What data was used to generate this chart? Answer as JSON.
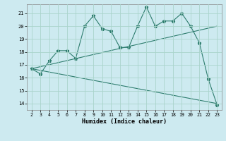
{
  "xlabel": "Humidex (Indice chaleur)",
  "x": [
    2,
    3,
    4,
    5,
    6,
    7,
    8,
    9,
    10,
    11,
    12,
    13,
    14,
    15,
    16,
    17,
    18,
    19,
    20,
    21,
    22,
    23
  ],
  "line1": [
    16.7,
    16.3,
    17.3,
    18.1,
    18.1,
    17.5,
    20.0,
    20.8,
    19.8,
    19.6,
    18.35,
    18.35,
    20.0,
    21.5,
    20.0,
    20.4,
    20.4,
    21.0,
    20.0,
    18.7,
    15.9,
    13.9
  ],
  "line2_x": [
    2,
    23
  ],
  "line2_y": [
    16.7,
    20.0
  ],
  "line3_x": [
    2,
    23
  ],
  "line3_y": [
    16.7,
    14.0
  ],
  "line_color": "#2e7d6e",
  "bg_color": "#cdeaf0",
  "grid_color": "#aad4cc",
  "ylim": [
    13.5,
    21.7
  ],
  "xlim": [
    1.5,
    23.5
  ],
  "yticks": [
    14,
    15,
    16,
    17,
    18,
    19,
    20,
    21
  ],
  "xticks": [
    2,
    3,
    4,
    5,
    6,
    7,
    8,
    9,
    10,
    11,
    12,
    13,
    14,
    15,
    16,
    17,
    18,
    19,
    20,
    21,
    22,
    23
  ]
}
